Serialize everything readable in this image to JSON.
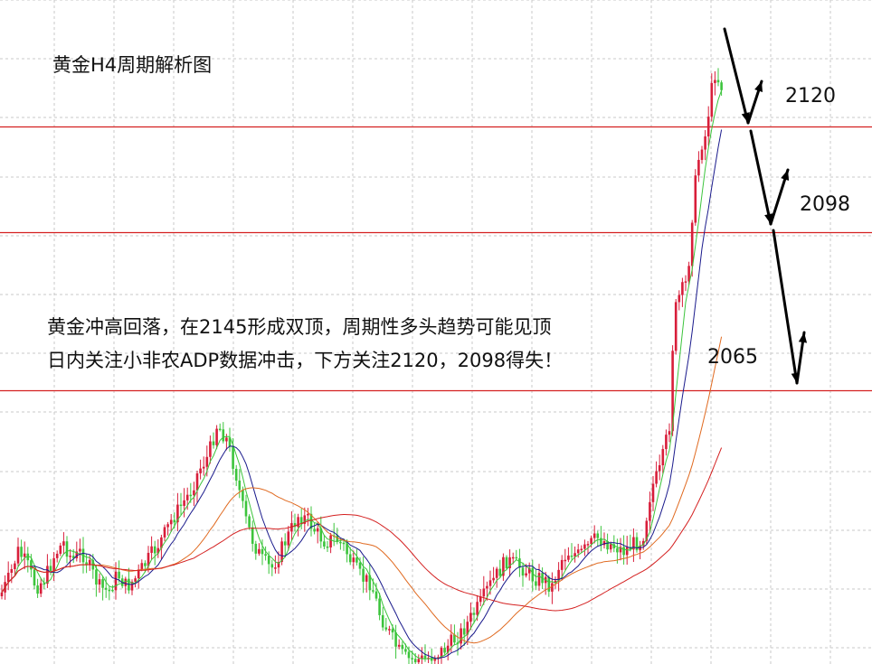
{
  "chart_data": {
    "type": "candlestick",
    "title": "黄金H4周期解析图",
    "annotations": [
      "黄金冲高回落，在2145形成双顶，周期性多头趋势可能见顶",
      "日内关注小非农ADP数据冲击，下方关注2120，2098得失！"
    ],
    "levels": [
      {
        "value": 2120,
        "label": "2120"
      },
      {
        "value": 2098,
        "label": "2098"
      },
      {
        "value": 2065,
        "label": "2065"
      }
    ],
    "grid": "dashed",
    "colors": {
      "up": "#d81e3a",
      "down": "#3cc43c",
      "ma_fast": "#3cc43c",
      "ma_mid": "#1a1a8c",
      "ma_slow": "#e06a20",
      "ma_long": "#d42020",
      "level_line": "#d42020",
      "arrow": "#000000"
    }
  }
}
